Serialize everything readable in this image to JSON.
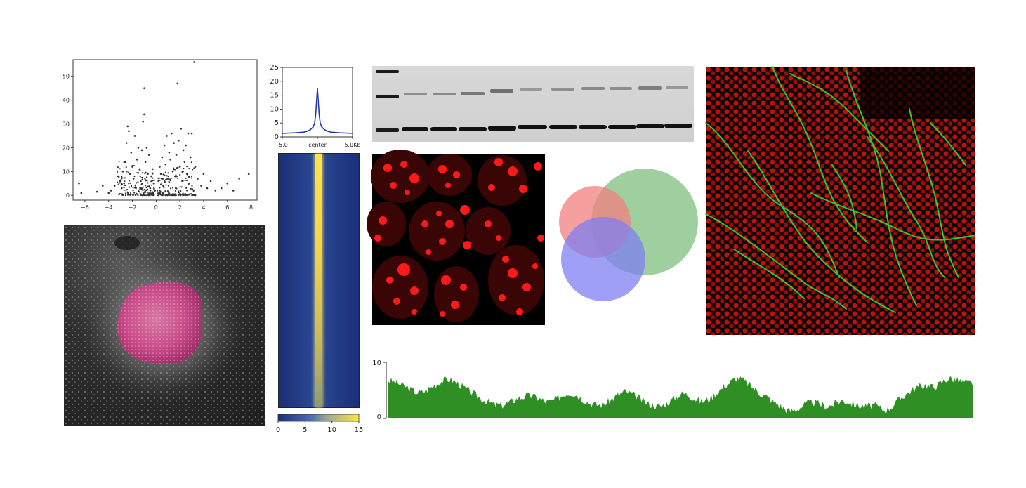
{
  "colors": {
    "scatter_points": "#333333",
    "profile_line": "#1f3aa8",
    "heatmap_low": "#1b2f7a",
    "heatmap_high": "#ffe34a",
    "coverage_fill": "#2f8f24",
    "venn_red": "#f27f7f",
    "venn_green": "#7fbf7f",
    "venn_blue": "#7f7ff2",
    "nuclei_red": "#ff1a1a",
    "neurite_green": "#33dd33"
  },
  "images": {
    "colony_photo": "colony-microscopy-photo",
    "western_blot": "western-blot-image",
    "nuclei_image": "red-nuclei-fluorescence-image",
    "neuron_image": "neuron-fluorescence-image"
  },
  "chart_data": [
    {
      "type": "scatter",
      "title": "",
      "xlabel": "",
      "ylabel": "",
      "xlim": [
        -7,
        8.5
      ],
      "ylim": [
        -2,
        57
      ],
      "xticks": [
        "−6",
        "−4",
        "−2",
        "0",
        "2",
        "4",
        "6",
        "8"
      ],
      "yticks": [
        "0",
        "10",
        "20",
        "30",
        "40",
        "50"
      ],
      "points": [
        [
          -6.5,
          5
        ],
        [
          -6.3,
          1
        ],
        [
          -5,
          1.5
        ],
        [
          -4.5,
          4
        ],
        [
          -4,
          1
        ],
        [
          -3.8,
          2
        ],
        [
          -3.5,
          4
        ],
        [
          -3.2,
          8
        ],
        [
          -3,
          6
        ],
        [
          -2.9,
          3
        ],
        [
          -2.8,
          10
        ],
        [
          -2.7,
          5
        ],
        [
          -2.6,
          14
        ],
        [
          -2.5,
          22
        ],
        [
          -2.4,
          29
        ],
        [
          -2.3,
          27
        ],
        [
          -2.2,
          9
        ],
        [
          -2.1,
          18
        ],
        [
          -2,
          12
        ],
        [
          -1.9,
          7
        ],
        [
          -1.8,
          25
        ],
        [
          -1.7,
          3
        ],
        [
          -1.6,
          15
        ],
        [
          -1.5,
          20
        ],
        [
          -1.4,
          11
        ],
        [
          -1.3,
          6
        ],
        [
          -1.2,
          19
        ],
        [
          -1.1,
          31
        ],
        [
          -1.0,
          34
        ],
        [
          -1.0,
          45
        ],
        [
          -0.9,
          14
        ],
        [
          -0.8,
          20
        ],
        [
          -0.7,
          9
        ],
        [
          -0.6,
          17
        ],
        [
          -0.5,
          3
        ],
        [
          -0.4,
          8
        ],
        [
          -0.3,
          11
        ],
        [
          -0.2,
          5
        ],
        [
          -0.1,
          2
        ],
        [
          0.1,
          2
        ],
        [
          0.2,
          6
        ],
        [
          0.3,
          12
        ],
        [
          0.4,
          9
        ],
        [
          0.5,
          16
        ],
        [
          0.6,
          4
        ],
        [
          0.7,
          21
        ],
        [
          0.8,
          13
        ],
        [
          0.9,
          25
        ],
        [
          1.0,
          7
        ],
        [
          1.1,
          18
        ],
        [
          1.2,
          15
        ],
        [
          1.3,
          26
        ],
        [
          1.4,
          10
        ],
        [
          1.5,
          22
        ],
        [
          1.6,
          8
        ],
        [
          1.7,
          17
        ],
        [
          1.8,
          47
        ],
        [
          1.9,
          23
        ],
        [
          2.0,
          12
        ],
        [
          2.1,
          28
        ],
        [
          2.2,
          6
        ],
        [
          2.3,
          19
        ],
        [
          2.4,
          14
        ],
        [
          2.5,
          21
        ],
        [
          2.6,
          9
        ],
        [
          2.7,
          26
        ],
        [
          2.8,
          5
        ],
        [
          2.9,
          16
        ],
        [
          3.0,
          26
        ],
        [
          3.2,
          56
        ],
        [
          3.3,
          12
        ],
        [
          3.5,
          7
        ],
        [
          3.8,
          4
        ],
        [
          4.0,
          9
        ],
        [
          4.3,
          3
        ],
        [
          4.6,
          6
        ],
        [
          5.0,
          2
        ],
        [
          5.5,
          3
        ],
        [
          6.0,
          5
        ],
        [
          6.5,
          2
        ],
        [
          7.0,
          7
        ],
        [
          7.8,
          9
        ]
      ]
    },
    {
      "type": "line",
      "title": "",
      "xlabel": "",
      "ylabel": "",
      "ylim": [
        0,
        25
      ],
      "yticks": [
        "0",
        "5",
        "10",
        "15",
        "20",
        "25"
      ],
      "xticks": [
        "-5.0",
        "center",
        "5.0Kb"
      ],
      "x": [
        -5.0,
        -4.0,
        -3.0,
        -2.0,
        -1.5,
        -1.0,
        -0.6,
        -0.4,
        -0.25,
        -0.12,
        0,
        0.12,
        0.25,
        0.4,
        0.6,
        1.0,
        1.5,
        2.0,
        3.0,
        4.0,
        5.0
      ],
      "y": [
        1.3,
        1.4,
        1.5,
        1.7,
        2.0,
        2.6,
        3.6,
        5.0,
        8.0,
        13.0,
        17.5,
        13.0,
        8.0,
        5.0,
        3.6,
        2.6,
        2.0,
        1.7,
        1.5,
        1.4,
        1.3
      ]
    },
    {
      "type": "heatmap",
      "title": "",
      "colorbar_min": 0,
      "colorbar_max": 15,
      "colorbar_ticks": [
        "0",
        "5",
        "10",
        "15"
      ]
    },
    {
      "type": "area",
      "title": "",
      "xlabel": "",
      "ylabel": "",
      "ylim": [
        0,
        10
      ],
      "yticks": [
        "10",
        "0"
      ],
      "values": [
        6.8,
        6.5,
        6.1,
        5.6,
        5.0,
        4.6,
        4.8,
        5.4,
        6.0,
        6.6,
        7.0,
        6.7,
        6.1,
        5.3,
        4.7,
        4.0,
        3.4,
        2.9,
        2.5,
        2.3,
        2.6,
        3.1,
        3.6,
        3.9,
        4.1,
        3.8,
        3.3,
        2.9,
        3.2,
        3.8,
        4.4,
        4.6,
        4.1,
        3.4,
        2.8,
        2.5,
        2.4,
        2.8,
        3.5,
        4.2,
        4.8,
        4.5,
        3.9,
        3.2,
        2.6,
        2.3,
        2.1,
        2.6,
        3.3,
        4.0,
        4.5,
        4.1,
        3.5,
        3.0,
        3.3,
        4.0,
        4.9,
        5.8,
        6.5,
        7.2,
        6.9,
        6.1,
        5.3,
        4.5,
        3.9,
        3.2,
        2.5,
        1.8,
        1.3,
        1.5,
        2.1,
        2.7,
        2.9,
        2.6,
        2.2,
        2.3,
        2.9,
        3.2,
        2.9,
        2.5,
        2.2,
        2.1,
        2.4,
        2.1,
        1.5,
        1.9,
        2.8,
        3.8,
        4.6,
        5.2,
        5.7,
        6.0,
        5.6,
        5.9,
        6.6,
        7.2,
        6.9,
        6.6,
        6.4,
        6.3
      ]
    },
    {
      "type": "venn",
      "title": "",
      "sets": [
        {
          "color": "#f27f7f",
          "opacity": 0.75
        },
        {
          "color": "#7fbf7f",
          "opacity": 0.75
        },
        {
          "color": "#7f7ff2",
          "opacity": 0.75
        }
      ]
    }
  ]
}
